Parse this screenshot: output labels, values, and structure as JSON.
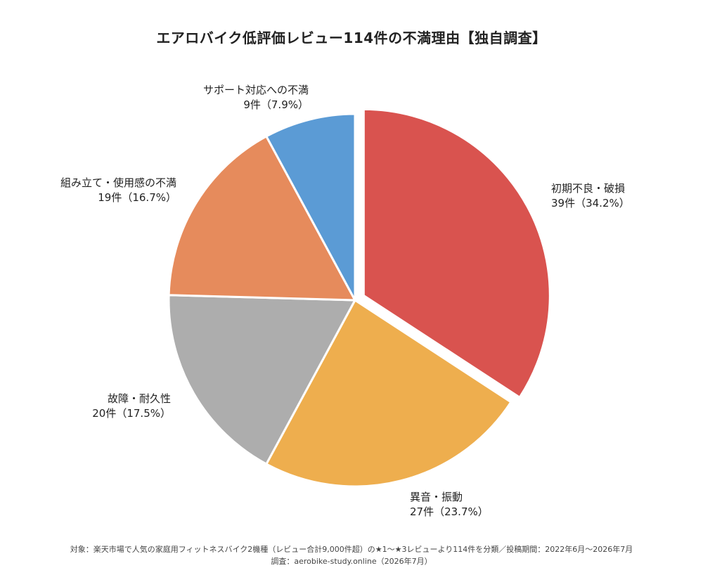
{
  "chart_data": {
    "type": "pie",
    "title": "エアロバイク低評価レビュー114件の不満理由【独自調査】",
    "total": 114,
    "slices": [
      {
        "label": "初期不良・破損",
        "count": 39,
        "percent_text": "39件（34.2%）",
        "value": 34.2,
        "color": "#d9534f",
        "exploded": true
      },
      {
        "label": "異音・振動",
        "count": 27,
        "percent_text": "27件（23.7%）",
        "value": 23.7,
        "color": "#eeae4e",
        "exploded": false
      },
      {
        "label": "故障・耐久性",
        "count": 20,
        "percent_text": "20件（17.5%）",
        "value": 17.5,
        "color": "#adadad",
        "exploded": false
      },
      {
        "label": "組み立て・使用感の不満",
        "count": 19,
        "percent_text": "19件（16.7%）",
        "value": 16.7,
        "color": "#e68b5c",
        "exploded": false
      },
      {
        "label": "サポート対応への不満",
        "count": 9,
        "percent_text": "9件（7.9%）",
        "value": 7.9,
        "color": "#5b9bd5",
        "exploded": false
      }
    ]
  },
  "footer": {
    "line1": "対象：楽天市場で人気の家庭用フィットネスバイク2機種（レビュー合計9,000件超）の★1〜★3レビューより114件を分類／投稿期間：2022年6月〜2026年7月",
    "line2": "調査：aerobike-study.online（2026年7月）"
  }
}
